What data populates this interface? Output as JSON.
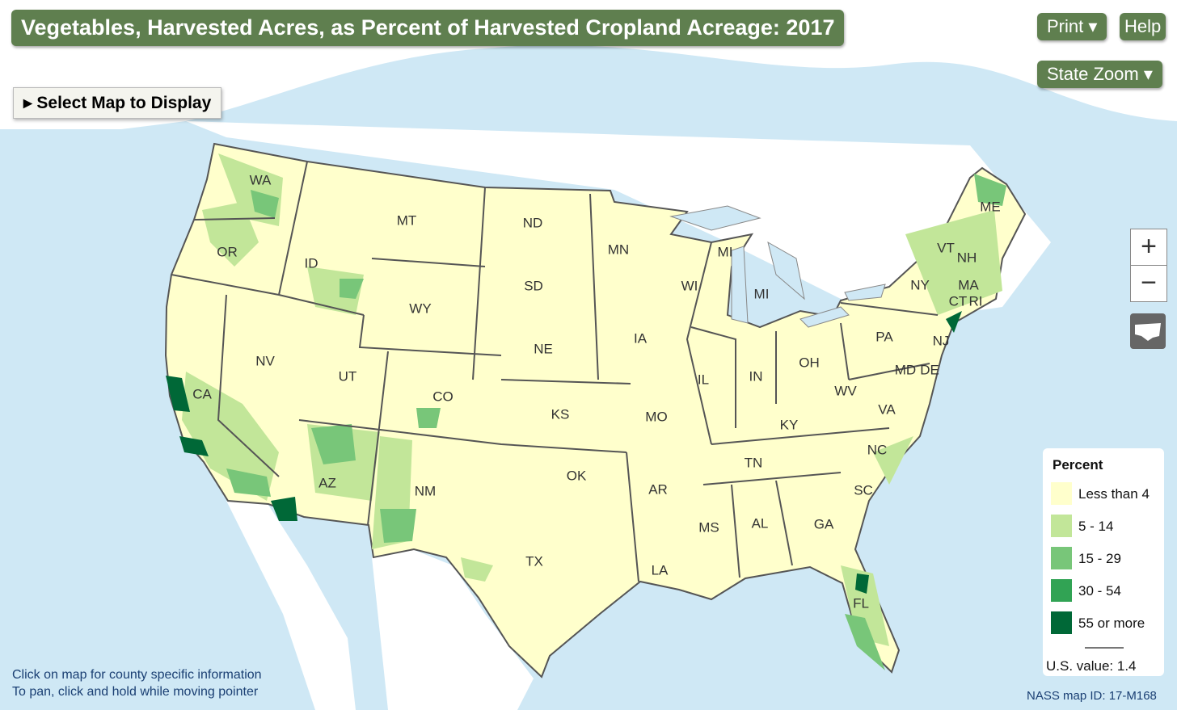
{
  "header": {
    "title": "Vegetables, Harvested Acres, as Percent of Harvested Cropland Acreage: 2017"
  },
  "buttons": {
    "print": "Print",
    "help": "Help",
    "state_zoom": "State Zoom",
    "select_map": "Select Map to Display"
  },
  "zoom": {
    "zoom_in": "+",
    "zoom_out": "−"
  },
  "states": [
    "WA",
    "OR",
    "CA",
    "ID",
    "NV",
    "MT",
    "WY",
    "UT",
    "AZ",
    "CO",
    "NM",
    "ND",
    "SD",
    "NE",
    "KS",
    "OK",
    "TX",
    "MN",
    "IA",
    "MO",
    "AR",
    "LA",
    "WI",
    "MI",
    "MI",
    "IL",
    "IN",
    "OH",
    "KY",
    "TN",
    "MS",
    "AL",
    "GA",
    "FL",
    "SC",
    "NC",
    "VA",
    "WV",
    "PA",
    "NY",
    "MD",
    "DE",
    "NJ",
    "VT",
    "NH",
    "ME",
    "MA",
    "CT",
    "RI"
  ],
  "legend": {
    "title": "Percent",
    "items": [
      {
        "label": "Less than 4",
        "color": "#ffffcc"
      },
      {
        "label": "5 - 14",
        "color": "#c2e699"
      },
      {
        "label": "15 - 29",
        "color": "#78c679"
      },
      {
        "label": "30 - 54",
        "color": "#31a354"
      },
      {
        "label": "55 or more",
        "color": "#006837"
      }
    ],
    "us_value": "U.S. value: 1.4"
  },
  "footer": {
    "instructions": [
      "Click on map for county specific information",
      "To pan, click and hold while moving pointer"
    ],
    "map_id": "NASS map ID: 17-M168"
  }
}
